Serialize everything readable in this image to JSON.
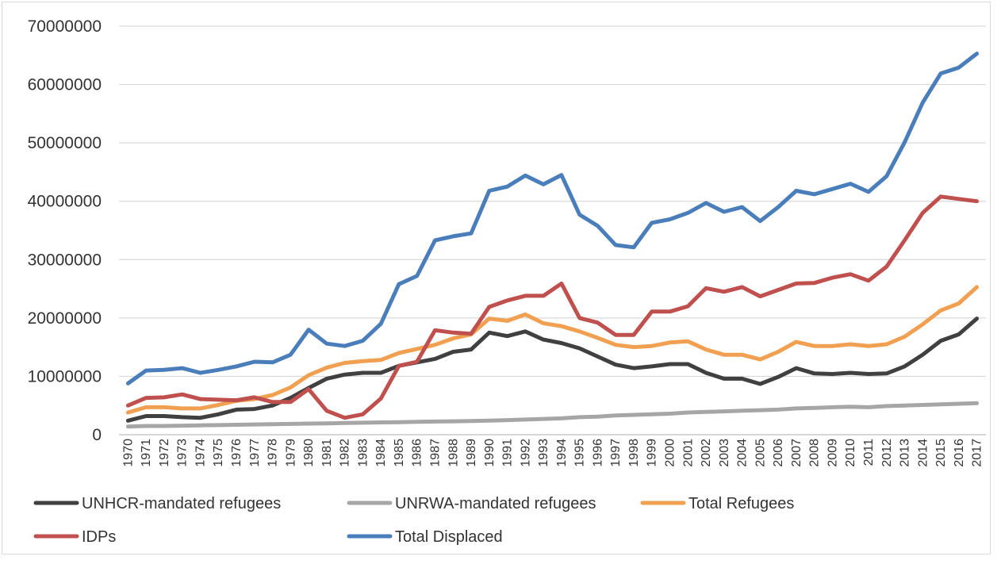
{
  "chart_data": {
    "type": "line",
    "title": "",
    "xlabel": "",
    "ylabel": "",
    "ylim": [
      0,
      70000000
    ],
    "yticks": [
      0,
      10000000,
      20000000,
      30000000,
      40000000,
      50000000,
      60000000,
      70000000
    ],
    "ytick_labels": [
      "0",
      "10000000",
      "20000000",
      "30000000",
      "40000000",
      "50000000",
      "60000000",
      "70000000"
    ],
    "grid": "horizontal",
    "legend_position": "bottom",
    "categories": [
      "1970",
      "1971",
      "1972",
      "1973",
      "1974",
      "1975",
      "1976",
      "1977",
      "1978",
      "1979",
      "1980",
      "1981",
      "1982",
      "1983",
      "1984",
      "1985",
      "1986",
      "1987",
      "1988",
      "1989",
      "1990",
      "1991",
      "1992",
      "1993",
      "1994",
      "1995",
      "1996",
      "1997",
      "1998",
      "1999",
      "2000",
      "2001",
      "2002",
      "2003",
      "2004",
      "2005",
      "2006",
      "2007",
      "2008",
      "2009",
      "2010",
      "2011",
      "2012",
      "2013",
      "2014",
      "2015",
      "2016",
      "2017"
    ],
    "series": [
      {
        "name": "UNHCR-mandated refugees",
        "color": "#404040",
        "values": [
          2400000,
          3200000,
          3200000,
          3000000,
          2900000,
          3500000,
          4300000,
          4400000,
          5000000,
          6300000,
          8000000,
          9600000,
          10300000,
          10600000,
          10600000,
          11800000,
          12400000,
          13000000,
          14200000,
          14600000,
          17500000,
          16900000,
          17700000,
          16300000,
          15700000,
          14800000,
          13400000,
          12000000,
          11400000,
          11700000,
          12100000,
          12100000,
          10600000,
          9600000,
          9600000,
          8700000,
          9900000,
          11400000,
          10500000,
          10400000,
          10600000,
          10400000,
          10500000,
          11700000,
          13700000,
          16100000,
          17200000,
          19900000
        ]
      },
      {
        "name": "UNRWA-mandated refugees",
        "color": "#a6a6a6",
        "values": [
          1400000,
          1500000,
          1500000,
          1550000,
          1600000,
          1650000,
          1700000,
          1750000,
          1800000,
          1850000,
          1900000,
          1950000,
          2000000,
          2050000,
          2100000,
          2150000,
          2200000,
          2250000,
          2300000,
          2350000,
          2400000,
          2500000,
          2600000,
          2700000,
          2800000,
          3000000,
          3100000,
          3300000,
          3400000,
          3500000,
          3600000,
          3800000,
          3900000,
          4000000,
          4100000,
          4200000,
          4300000,
          4500000,
          4600000,
          4700000,
          4800000,
          4700000,
          4900000,
          5000000,
          5100000,
          5200000,
          5300000,
          5400000
        ]
      },
      {
        "name": "Total Refugees",
        "color": "#f0a050",
        "values": [
          3800000,
          4700000,
          4700000,
          4500000,
          4500000,
          5100000,
          5800000,
          6100000,
          6800000,
          8100000,
          10200000,
          11500000,
          12300000,
          12600000,
          12800000,
          14000000,
          14700000,
          15400000,
          16500000,
          17200000,
          19900000,
          19500000,
          20600000,
          19100000,
          18600000,
          17700000,
          16600000,
          15400000,
          15000000,
          15200000,
          15800000,
          16000000,
          14600000,
          13700000,
          13700000,
          12900000,
          14200000,
          15900000,
          15200000,
          15200000,
          15500000,
          15200000,
          15500000,
          16800000,
          18900000,
          21300000,
          22500000,
          25300000
        ]
      },
      {
        "name": "IDPs",
        "color": "#c0504d",
        "values": [
          5000000,
          6300000,
          6400000,
          6900000,
          6100000,
          6000000,
          5900000,
          6400000,
          5600000,
          5600000,
          7800000,
          4100000,
          2900000,
          3500000,
          6200000,
          11800000,
          12500000,
          17900000,
          17500000,
          17300000,
          21900000,
          23000000,
          23800000,
          23800000,
          25900000,
          20000000,
          19200000,
          17100000,
          17100000,
          21100000,
          21100000,
          22000000,
          25100000,
          24500000,
          25300000,
          23700000,
          24800000,
          25900000,
          26000000,
          26900000,
          27500000,
          26400000,
          28800000,
          33300000,
          38000000,
          40800000,
          40400000,
          40000000
        ]
      },
      {
        "name": "Total Displaced",
        "color": "#4a7ebb",
        "values": [
          8800000,
          11000000,
          11100000,
          11400000,
          10600000,
          11100000,
          11700000,
          12500000,
          12400000,
          13700000,
          18000000,
          15600000,
          15200000,
          16100000,
          19000000,
          25800000,
          27200000,
          33300000,
          34000000,
          34500000,
          41800000,
          42500000,
          44400000,
          42900000,
          44500000,
          37700000,
          35800000,
          32500000,
          32100000,
          36300000,
          36900000,
          38000000,
          39700000,
          38200000,
          39000000,
          36600000,
          39000000,
          41800000,
          41200000,
          42100000,
          43000000,
          41600000,
          44300000,
          50100000,
          56900000,
          61900000,
          62900000,
          65300000
        ]
      }
    ],
    "legend_order": [
      "UNHCR-mandated refugees",
      "UNRWA-mandated refugees",
      "Total Refugees",
      "IDPs",
      "Total Displaced"
    ]
  }
}
